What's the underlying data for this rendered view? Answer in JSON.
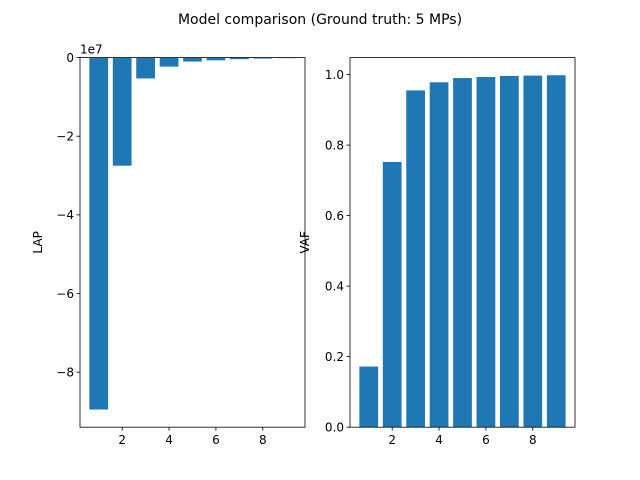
{
  "suptitle": "Model comparison (Ground truth: 5 MPs)",
  "bar_color": "#1f77b4",
  "chart_data": [
    {
      "type": "bar",
      "title": "",
      "xlabel": "",
      "ylabel": "LAP",
      "offset_label": "1e7",
      "offset_multiplier": 10000000,
      "categories": [
        1,
        2,
        3,
        4,
        5,
        6,
        7,
        8,
        9
      ],
      "values": [
        -89500000,
        -27500000,
        -5300000,
        -2300000,
        -1000000,
        -700000,
        -400000,
        -250000,
        -150000
      ],
      "xlim": [
        0.2,
        9.8
      ],
      "ylim": [
        -94000000,
        0
      ],
      "xticks": [
        2,
        4,
        6,
        8
      ],
      "yticks": [
        -80000000,
        -60000000,
        -40000000,
        -20000000,
        0
      ],
      "ytick_labels": [
        "−8",
        "−6",
        "−4",
        "−2",
        "0"
      ],
      "grid": false
    },
    {
      "type": "bar",
      "title": "",
      "xlabel": "",
      "ylabel": "VAF",
      "categories": [
        1,
        2,
        3,
        4,
        5,
        6,
        7,
        8,
        9
      ],
      "values": [
        0.172,
        0.752,
        0.955,
        0.978,
        0.99,
        0.993,
        0.996,
        0.997,
        0.998
      ],
      "xlim": [
        0.2,
        9.8
      ],
      "ylim": [
        0,
        1.048
      ],
      "xticks": [
        2,
        4,
        6,
        8
      ],
      "yticks": [
        0.0,
        0.2,
        0.4,
        0.6,
        0.8,
        1.0
      ],
      "ytick_labels": [
        "0.0",
        "0.2",
        "0.4",
        "0.6",
        "0.8",
        "1.0"
      ],
      "grid": false
    }
  ]
}
